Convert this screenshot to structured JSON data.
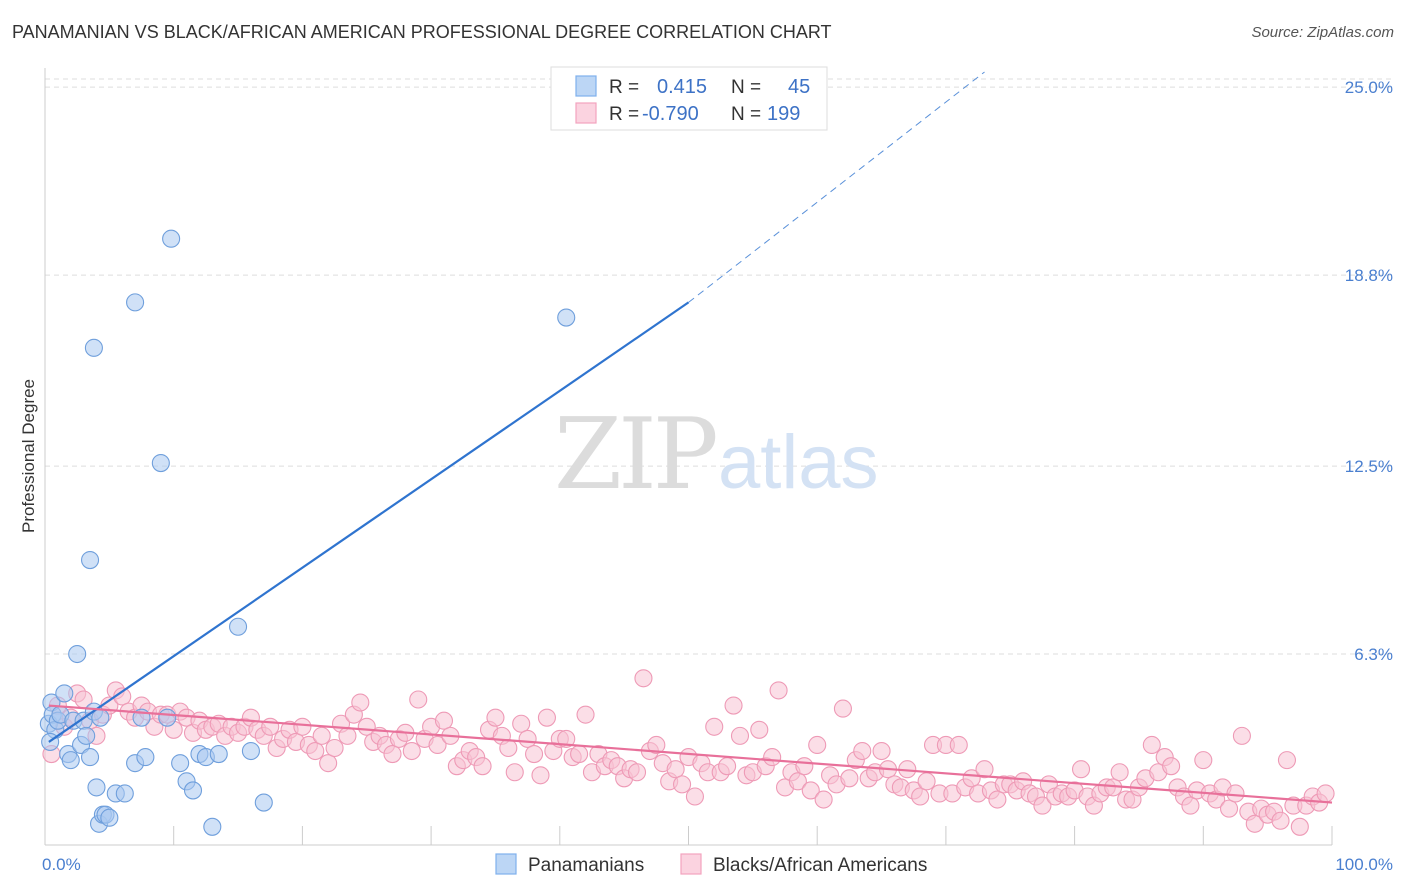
{
  "header": {
    "title": "PANAMANIAN VS BLACK/AFRICAN AMERICAN PROFESSIONAL DEGREE CORRELATION CHART",
    "source": "Source: ZipAtlas.com"
  },
  "watermark": {
    "zip": "ZIP",
    "atlas": "atlas"
  },
  "legend": {
    "r_label": "R =",
    "n_label": "N =",
    "rows": [
      {
        "r": "0.415",
        "n": "45",
        "color": "#7fb0ec"
      },
      {
        "r": "-0.790",
        "n": "199",
        "color": "#f2a3be"
      }
    ]
  },
  "bottom_legend": [
    {
      "label": "Panamanians",
      "color": "#7fb0ec"
    },
    {
      "label": "Blacks/African Americans",
      "color": "#f2a3be"
    }
  ],
  "colors": {
    "blue_fill": "#a9c8f0",
    "blue_stroke": "#6f9fdc",
    "blue_line": "#2f74cf",
    "pink_fill": "#f8c3d4",
    "pink_stroke": "#ee9ab6",
    "pink_line": "#e8709a",
    "grid": "#dddddd",
    "tick_text": "#4a7fcf"
  },
  "chart_data": {
    "type": "scatter",
    "title": "PANAMANIAN VS BLACK/AFRICAN AMERICAN PROFESSIONAL DEGREE CORRELATION CHART",
    "xlabel": "",
    "ylabel": "Professional Degree",
    "xlim": [
      0,
      100
    ],
    "ylim": [
      0,
      25.5
    ],
    "x_tick_labels": [
      "0.0%",
      "100.0%"
    ],
    "y_ticks": [
      {
        "value": 6.3,
        "label": "6.3%"
      },
      {
        "value": 12.5,
        "label": "12.5%"
      },
      {
        "value": 18.8,
        "label": "18.8%"
      },
      {
        "value": 25.0,
        "label": "25.0%"
      }
    ],
    "grid": true,
    "legend_position": "top-center",
    "series": [
      {
        "name": "Panamanians",
        "r": 0.415,
        "n": 45,
        "trend": {
          "x0": 0.3,
          "y0": 3.4,
          "x1": 50.0,
          "y1": 17.9,
          "dash_to_x": 73.0,
          "dash_to_y": 25.5
        },
        "points": [
          [
            0.3,
            4.0
          ],
          [
            0.5,
            4.7
          ],
          [
            0.6,
            4.3
          ],
          [
            0.8,
            3.8
          ],
          [
            1.0,
            4.1
          ],
          [
            0.4,
            3.4
          ],
          [
            1.2,
            4.3
          ],
          [
            1.5,
            5.0
          ],
          [
            1.8,
            3.0
          ],
          [
            2.0,
            2.8
          ],
          [
            2.2,
            4.1
          ],
          [
            2.5,
            6.3
          ],
          [
            2.8,
            3.3
          ],
          [
            3.0,
            4.1
          ],
          [
            3.2,
            3.6
          ],
          [
            3.5,
            2.9
          ],
          [
            3.8,
            4.4
          ],
          [
            4.0,
            1.9
          ],
          [
            4.2,
            0.7
          ],
          [
            4.5,
            1.0
          ],
          [
            4.7,
            1.0
          ],
          [
            5.0,
            0.9
          ],
          [
            4.3,
            4.2
          ],
          [
            5.5,
            1.7
          ],
          [
            3.5,
            9.4
          ],
          [
            3.8,
            16.4
          ],
          [
            6.2,
            1.7
          ],
          [
            7.0,
            2.7
          ],
          [
            7.5,
            4.2
          ],
          [
            9.0,
            12.6
          ],
          [
            9.5,
            4.2
          ],
          [
            10.5,
            2.7
          ],
          [
            11.0,
            2.1
          ],
          [
            11.5,
            1.8
          ],
          [
            12.0,
            3.0
          ],
          [
            12.5,
            2.9
          ],
          [
            7.8,
            2.9
          ],
          [
            7.0,
            17.9
          ],
          [
            13.0,
            0.6
          ],
          [
            9.8,
            20.0
          ],
          [
            13.5,
            3.0
          ],
          [
            15.0,
            7.2
          ],
          [
            16.0,
            3.1
          ],
          [
            17.0,
            1.4
          ],
          [
            40.5,
            17.4
          ]
        ]
      },
      {
        "name": "Blacks/African Americans",
        "r": -0.79,
        "n": 199,
        "trend": {
          "x0": 0.3,
          "y0": 4.6,
          "x1": 100.0,
          "y1": 1.4
        },
        "points": [
          [
            0.5,
            3.0
          ],
          [
            1.0,
            4.6
          ],
          [
            1.5,
            3.9
          ],
          [
            2.0,
            4.2
          ],
          [
            2.5,
            5.0
          ],
          [
            3.0,
            4.8
          ],
          [
            3.5,
            4.1
          ],
          [
            4.0,
            3.6
          ],
          [
            4.5,
            4.3
          ],
          [
            5.0,
            4.6
          ],
          [
            5.5,
            5.1
          ],
          [
            6.0,
            4.9
          ],
          [
            6.5,
            4.4
          ],
          [
            7.0,
            4.2
          ],
          [
            7.5,
            4.6
          ],
          [
            8.0,
            4.4
          ],
          [
            8.5,
            3.9
          ],
          [
            9.0,
            4.3
          ],
          [
            9.5,
            4.3
          ],
          [
            10.0,
            3.8
          ],
          [
            10.5,
            4.4
          ],
          [
            11.0,
            4.2
          ],
          [
            11.5,
            3.7
          ],
          [
            12.0,
            4.1
          ],
          [
            12.5,
            3.8
          ],
          [
            13.0,
            3.9
          ],
          [
            13.5,
            4.0
          ],
          [
            14.0,
            3.6
          ],
          [
            14.5,
            3.9
          ],
          [
            15.0,
            3.7
          ],
          [
            15.5,
            3.9
          ],
          [
            16.0,
            4.2
          ],
          [
            16.5,
            3.8
          ],
          [
            17.0,
            3.6
          ],
          [
            17.5,
            3.9
          ],
          [
            18.0,
            3.2
          ],
          [
            18.5,
            3.5
          ],
          [
            19.0,
            3.8
          ],
          [
            19.5,
            3.4
          ],
          [
            20.0,
            3.9
          ],
          [
            20.5,
            3.3
          ],
          [
            21.0,
            3.1
          ],
          [
            21.5,
            3.6
          ],
          [
            22.0,
            2.7
          ],
          [
            22.5,
            3.2
          ],
          [
            23.0,
            4.0
          ],
          [
            23.5,
            3.6
          ],
          [
            24.0,
            4.3
          ],
          [
            24.5,
            4.7
          ],
          [
            25.0,
            3.9
          ],
          [
            25.5,
            3.4
          ],
          [
            26.0,
            3.6
          ],
          [
            26.5,
            3.3
          ],
          [
            27.0,
            3.0
          ],
          [
            27.5,
            3.5
          ],
          [
            28.0,
            3.7
          ],
          [
            28.5,
            3.1
          ],
          [
            29.0,
            4.8
          ],
          [
            29.5,
            3.5
          ],
          [
            30.0,
            3.9
          ],
          [
            30.5,
            3.3
          ],
          [
            31.0,
            4.1
          ],
          [
            31.5,
            3.6
          ],
          [
            32.0,
            2.6
          ],
          [
            32.5,
            2.8
          ],
          [
            33.0,
            3.1
          ],
          [
            33.5,
            2.9
          ],
          [
            34.0,
            2.6
          ],
          [
            34.5,
            3.8
          ],
          [
            35.0,
            4.2
          ],
          [
            35.5,
            3.6
          ],
          [
            36.0,
            3.2
          ],
          [
            36.5,
            2.4
          ],
          [
            37.0,
            4.0
          ],
          [
            37.5,
            3.5
          ],
          [
            38.0,
            3.0
          ],
          [
            38.5,
            2.3
          ],
          [
            39.0,
            4.2
          ],
          [
            39.5,
            3.1
          ],
          [
            40.0,
            3.5
          ],
          [
            40.5,
            3.5
          ],
          [
            41.0,
            2.9
          ],
          [
            41.5,
            3.0
          ],
          [
            42.0,
            4.3
          ],
          [
            42.5,
            2.4
          ],
          [
            43.0,
            3.0
          ],
          [
            43.5,
            2.6
          ],
          [
            44.0,
            2.8
          ],
          [
            44.5,
            2.6
          ],
          [
            45.0,
            2.2
          ],
          [
            45.5,
            2.5
          ],
          [
            46.0,
            2.4
          ],
          [
            46.5,
            5.5
          ],
          [
            47.0,
            3.1
          ],
          [
            47.5,
            3.3
          ],
          [
            48.0,
            2.7
          ],
          [
            48.5,
            2.1
          ],
          [
            49.0,
            2.5
          ],
          [
            49.5,
            2.0
          ],
          [
            50.0,
            2.9
          ],
          [
            50.5,
            1.6
          ],
          [
            51.0,
            2.7
          ],
          [
            51.5,
            2.4
          ],
          [
            52.0,
            3.9
          ],
          [
            52.5,
            2.4
          ],
          [
            53.0,
            2.6
          ],
          [
            53.5,
            4.6
          ],
          [
            54.0,
            3.6
          ],
          [
            54.5,
            2.3
          ],
          [
            55.0,
            2.4
          ],
          [
            55.5,
            3.8
          ],
          [
            56.0,
            2.6
          ],
          [
            56.5,
            2.9
          ],
          [
            57.0,
            5.1
          ],
          [
            57.5,
            1.9
          ],
          [
            58.0,
            2.4
          ],
          [
            58.5,
            2.1
          ],
          [
            59.0,
            2.6
          ],
          [
            59.5,
            1.8
          ],
          [
            60.0,
            3.3
          ],
          [
            60.5,
            1.5
          ],
          [
            61.0,
            2.3
          ],
          [
            61.5,
            2.0
          ],
          [
            62.0,
            4.5
          ],
          [
            62.5,
            2.2
          ],
          [
            63.0,
            2.8
          ],
          [
            63.5,
            3.1
          ],
          [
            64.0,
            2.2
          ],
          [
            64.5,
            2.4
          ],
          [
            65.0,
            3.1
          ],
          [
            65.5,
            2.5
          ],
          [
            66.0,
            2.0
          ],
          [
            66.5,
            1.9
          ],
          [
            67.0,
            2.5
          ],
          [
            67.5,
            1.8
          ],
          [
            68.0,
            1.6
          ],
          [
            68.5,
            2.1
          ],
          [
            69.0,
            3.3
          ],
          [
            69.5,
            1.7
          ],
          [
            70.0,
            3.3
          ],
          [
            70.5,
            1.7
          ],
          [
            71.0,
            3.3
          ],
          [
            71.5,
            1.9
          ],
          [
            72.0,
            2.2
          ],
          [
            72.5,
            1.7
          ],
          [
            73.0,
            2.5
          ],
          [
            73.5,
            1.8
          ],
          [
            74.0,
            1.5
          ],
          [
            74.5,
            2.0
          ],
          [
            75.0,
            2.0
          ],
          [
            75.5,
            1.8
          ],
          [
            76.0,
            2.1
          ],
          [
            76.5,
            1.7
          ],
          [
            77.0,
            1.6
          ],
          [
            77.5,
            1.3
          ],
          [
            78.0,
            2.0
          ],
          [
            78.5,
            1.6
          ],
          [
            79.0,
            1.7
          ],
          [
            79.5,
            1.6
          ],
          [
            80.0,
            1.8
          ],
          [
            80.5,
            2.5
          ],
          [
            81.0,
            1.6
          ],
          [
            81.5,
            1.3
          ],
          [
            82.0,
            1.7
          ],
          [
            82.5,
            1.9
          ],
          [
            83.0,
            1.9
          ],
          [
            83.5,
            2.4
          ],
          [
            84.0,
            1.5
          ],
          [
            84.5,
            1.5
          ],
          [
            85.0,
            1.9
          ],
          [
            85.5,
            2.2
          ],
          [
            86.0,
            3.3
          ],
          [
            86.5,
            2.4
          ],
          [
            87.0,
            2.9
          ],
          [
            87.5,
            2.6
          ],
          [
            88.0,
            1.9
          ],
          [
            88.5,
            1.6
          ],
          [
            89.0,
            1.3
          ],
          [
            89.5,
            1.8
          ],
          [
            90.0,
            2.8
          ],
          [
            90.5,
            1.7
          ],
          [
            91.0,
            1.5
          ],
          [
            91.5,
            1.9
          ],
          [
            92.0,
            1.2
          ],
          [
            92.5,
            1.7
          ],
          [
            93.0,
            3.6
          ],
          [
            93.5,
            1.1
          ],
          [
            94.0,
            0.7
          ],
          [
            94.5,
            1.2
          ],
          [
            95.0,
            1.0
          ],
          [
            95.5,
            1.1
          ],
          [
            96.0,
            0.8
          ],
          [
            96.5,
            2.8
          ],
          [
            97.0,
            1.3
          ],
          [
            97.5,
            0.6
          ],
          [
            98.0,
            1.3
          ],
          [
            98.5,
            1.6
          ],
          [
            99.0,
            1.4
          ],
          [
            99.5,
            1.7
          ]
        ]
      }
    ]
  }
}
